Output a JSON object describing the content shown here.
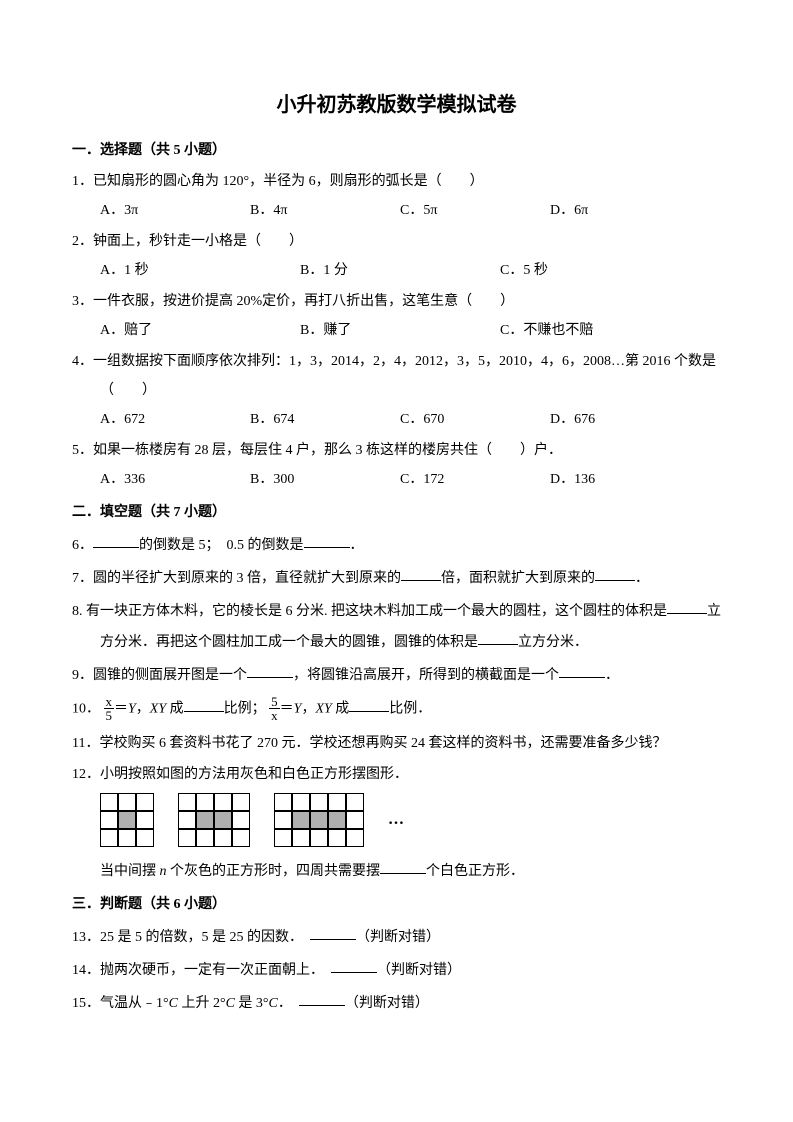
{
  "title": "小升初苏教版数学模拟试卷",
  "sections": {
    "s1": "一．选择题（共 5 小题）",
    "s2": "二．填空题（共 7 小题）",
    "s3": "三．判断题（共 6 小题）"
  },
  "q1": {
    "text": "1．已知扇形的圆心角为 120°，半径为 6，则扇形的弧长是（　　）",
    "a": "A．3π",
    "b": "B．4π",
    "c": "C．5π",
    "d": "D．6π"
  },
  "q2": {
    "text": "2．钟面上，秒针走一小格是（　　）",
    "a": "A．1 秒",
    "b": "B．1 分",
    "c": "C．5 秒"
  },
  "q3": {
    "text": "3．一件衣服，按进价提高 20%定价，再打八折出售，这笔生意（　　）",
    "a": "A．赔了",
    "b": "B．赚了",
    "c": "C．不赚也不赔"
  },
  "q4": {
    "text": "4．一组数据按下面顺序依次排列：1，3，2014，2，4，2012，3，5，2010，4，6，2008…第 2016 个数是",
    "sub": "（　　）",
    "a": "A．672",
    "b": "B．674",
    "c": "C．670",
    "d": "D．676"
  },
  "q5": {
    "text": "5．如果一栋楼房有 28 层，每层住 4 户，那么 3 栋这样的楼房共住（　　）户．",
    "a": "A．336",
    "b": "B．300",
    "c": "C．172",
    "d": "D．136"
  },
  "q6": {
    "pre": "6．",
    "mid": "的倒数是 5；　0.5 的倒数是",
    "post": "．"
  },
  "q7": {
    "pre": "7．圆的半径扩大到原来的 3 倍，直径就扩大到原来的",
    "mid": "倍，面积就扩大到原来的",
    "post": "．"
  },
  "q8": {
    "line1a": "8. 有一块正方体木料，它的棱长是 6 分米. 把这块木料加工成一个最大的圆柱，这个圆柱的体积是",
    "line1b": "立",
    "line2a": "方分米．再把这个圆柱加工成一个最大的圆锥，圆锥的体积是",
    "line2b": "立方分米．"
  },
  "q9": {
    "a": "9．圆锥的侧面展开图是一个",
    "b": "，将圆锥沿高展开，所得到的横截面是一个",
    "c": "．"
  },
  "q10": {
    "pre": "10．",
    "f1n": "x",
    "f1d": "5",
    "mid1": "＝",
    "var1": "Y",
    "t1": "，",
    "xy1": "XY",
    "t2": " 成",
    "mid2": "比例；",
    "f2n": "5",
    "f2d": "x",
    "mid3": "＝",
    "var2": "Y",
    "t3": "，",
    "xy2": "XY",
    "t4": " 成",
    "post": "比例．"
  },
  "q11": "11．学校购买 6 套资料书花了 270 元．学校还想再购买 24 套这样的资料书，还需要准备多少钱？",
  "q12": {
    "text": "12．小明按照如图的方法用灰色和白色正方形摆图形．",
    "after_a": "当中间摆 ",
    "n": "n",
    "after_b": " 个灰色的正方形时，四周共需要摆",
    "after_c": "个白色正方形．",
    "ellipsis": "…",
    "grids": {
      "colors": {
        "white": "#ffffff",
        "gray": "#b0b0b0",
        "border": "#000000"
      },
      "cell_size": 18,
      "patterns": [
        {
          "cols": 3,
          "rows": 3,
          "gray_cells": [
            [
              1,
              1
            ]
          ]
        },
        {
          "cols": 4,
          "rows": 3,
          "gray_cells": [
            [
              1,
              1
            ],
            [
              1,
              2
            ]
          ]
        },
        {
          "cols": 5,
          "rows": 3,
          "gray_cells": [
            [
              1,
              1
            ],
            [
              1,
              2
            ],
            [
              1,
              3
            ]
          ]
        }
      ]
    }
  },
  "q13": {
    "a": "13．25 是 5 的倍数，5 是 25 的因数．",
    "b": "（判断对错）"
  },
  "q14": {
    "a": "14．抛两次硬币，一定有一次正面朝上．",
    "b": "（判断对错）"
  },
  "q15": {
    "a": "15．气温从﹣1°",
    "c1": "C",
    "b": " 上升 2°",
    "c2": "C",
    "c": " 是 3°",
    "c3": "C",
    "d": "．",
    "e": "（判断对错）"
  },
  "style": {
    "page_bg": "#ffffff",
    "text_color": "#000000",
    "title_fontsize": 20,
    "body_fontsize": 14
  }
}
